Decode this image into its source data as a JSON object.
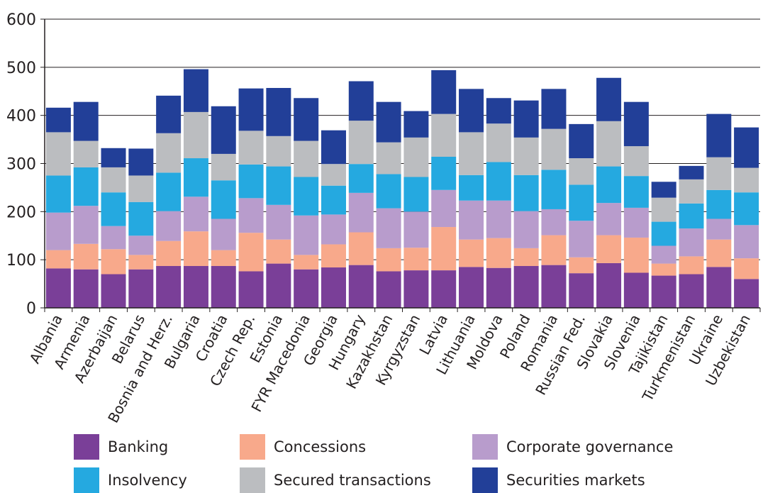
{
  "chart_data": {
    "type": "bar",
    "stacked": true,
    "title": "",
    "xlabel": "",
    "ylabel": "",
    "ylim": [
      0,
      600
    ],
    "yticks": [
      0,
      100,
      200,
      300,
      400,
      500,
      600
    ],
    "grid": true,
    "legend_position": "bottom",
    "categories": [
      "Albania",
      "Armenia",
      "Azerbaijan",
      "Belarus",
      "Bosnia and Herz.",
      "Bulgaria",
      "Croatia",
      "Czech Rep.",
      "Estonia",
      "FYR Macedonia",
      "Georgia",
      "Hungary",
      "Kazakhstan",
      "Kyrgyzstan",
      "Latvia",
      "Lithuania",
      "Moldova",
      "Poland",
      "Romania",
      "Russian Fed.",
      "Slovakia",
      "Slovenia",
      "Tajikistan",
      "Turkmenistan",
      "Ukraine",
      "Uzbekistan"
    ],
    "series": [
      {
        "name": "Banking",
        "color": "#7a3f98",
        "values": [
          82,
          80,
          70,
          80,
          87,
          87,
          87,
          76,
          92,
          80,
          84,
          89,
          76,
          78,
          78,
          85,
          83,
          87,
          89,
          72,
          93,
          73,
          67,
          70,
          85,
          60
        ]
      },
      {
        "name": "Concessions",
        "color": "#f8a98b",
        "values": [
          38,
          53,
          52,
          30,
          52,
          72,
          33,
          80,
          50,
          30,
          48,
          68,
          48,
          47,
          90,
          57,
          62,
          37,
          62,
          33,
          58,
          73,
          25,
          37,
          57,
          43
        ]
      },
      {
        "name": "Corporate governance",
        "color": "#b89ccc",
        "values": [
          78,
          79,
          48,
          40,
          62,
          72,
          65,
          72,
          72,
          82,
          62,
          82,
          83,
          75,
          77,
          81,
          78,
          77,
          54,
          76,
          67,
          62,
          37,
          58,
          43,
          69
        ]
      },
      {
        "name": "Insolvency",
        "color": "#25a9e0",
        "values": [
          77,
          80,
          70,
          70,
          80,
          80,
          80,
          70,
          80,
          80,
          60,
          60,
          71,
          72,
          69,
          53,
          80,
          75,
          82,
          75,
          76,
          66,
          50,
          52,
          60,
          68
        ]
      },
      {
        "name": "Secured transactions",
        "color": "#bbbdc0",
        "values": [
          90,
          55,
          52,
          55,
          82,
          96,
          55,
          70,
          63,
          75,
          45,
          90,
          66,
          82,
          89,
          89,
          80,
          78,
          85,
          55,
          94,
          62,
          50,
          50,
          68,
          51
        ]
      },
      {
        "name": "Securities markets",
        "color": "#223f98",
        "values": [
          51,
          81,
          40,
          56,
          78,
          89,
          99,
          88,
          100,
          89,
          70,
          82,
          84,
          55,
          91,
          90,
          53,
          77,
          83,
          71,
          90,
          92,
          33,
          28,
          90,
          84
        ]
      }
    ]
  }
}
